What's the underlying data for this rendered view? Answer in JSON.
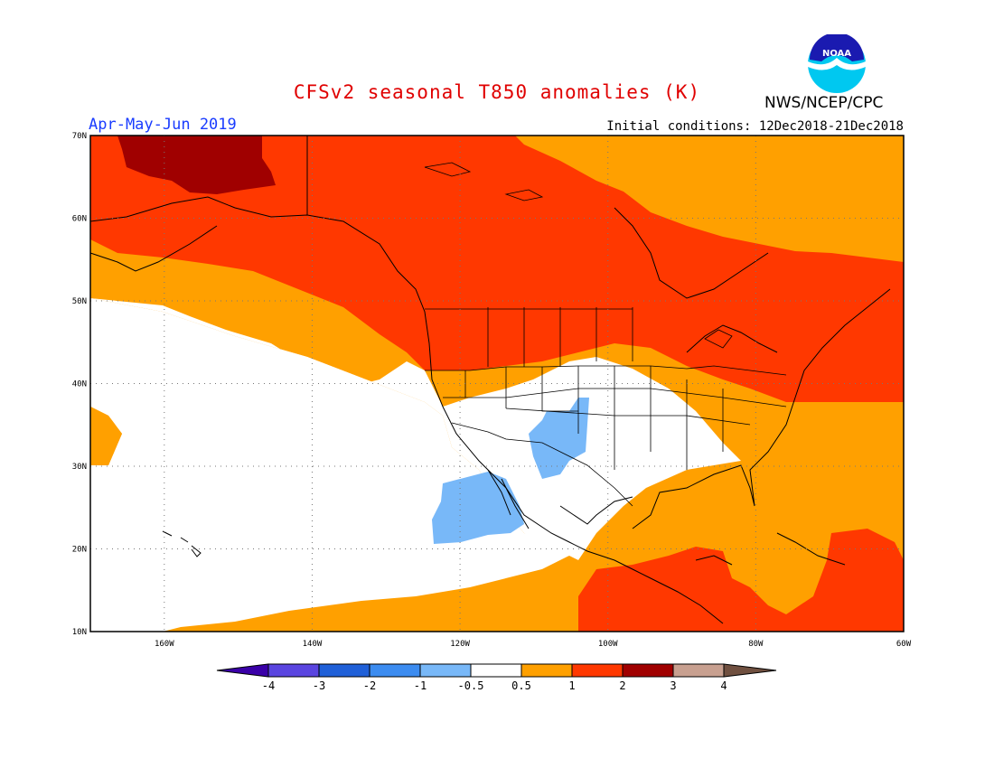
{
  "title": "CFSv2 seasonal T850 anomalies (K)",
  "period": "Apr-May-Jun 2019",
  "initial_conditions": "Initial conditions: 12Dec2018-21Dec2018",
  "organization": "NWS/NCEP/CPC",
  "logo_text": "NOAA",
  "map": {
    "lon_range": [
      -170,
      -60
    ],
    "lat_range": [
      10,
      70
    ],
    "lat_ticks": [
      "10N",
      "20N",
      "30N",
      "40N",
      "50N",
      "60N",
      "70N"
    ],
    "lon_ticks": [
      "160W",
      "140W",
      "120W",
      "100W",
      "80W",
      "60W"
    ],
    "grid_lines": "dotted",
    "background_class": "white"
  },
  "colorbar": {
    "labels": [
      "-4",
      "-3",
      "-2",
      "-1",
      "-0.5",
      "0.5",
      "1",
      "2",
      "3",
      "4"
    ],
    "colors": [
      "#3a00a8",
      "#5a45e0",
      "#2060d8",
      "#3c8cf0",
      "#78b8f8",
      "#ffffff",
      "#ffa000",
      "#ff3800",
      "#a00000",
      "#c8a090",
      "#705040"
    ]
  }
}
